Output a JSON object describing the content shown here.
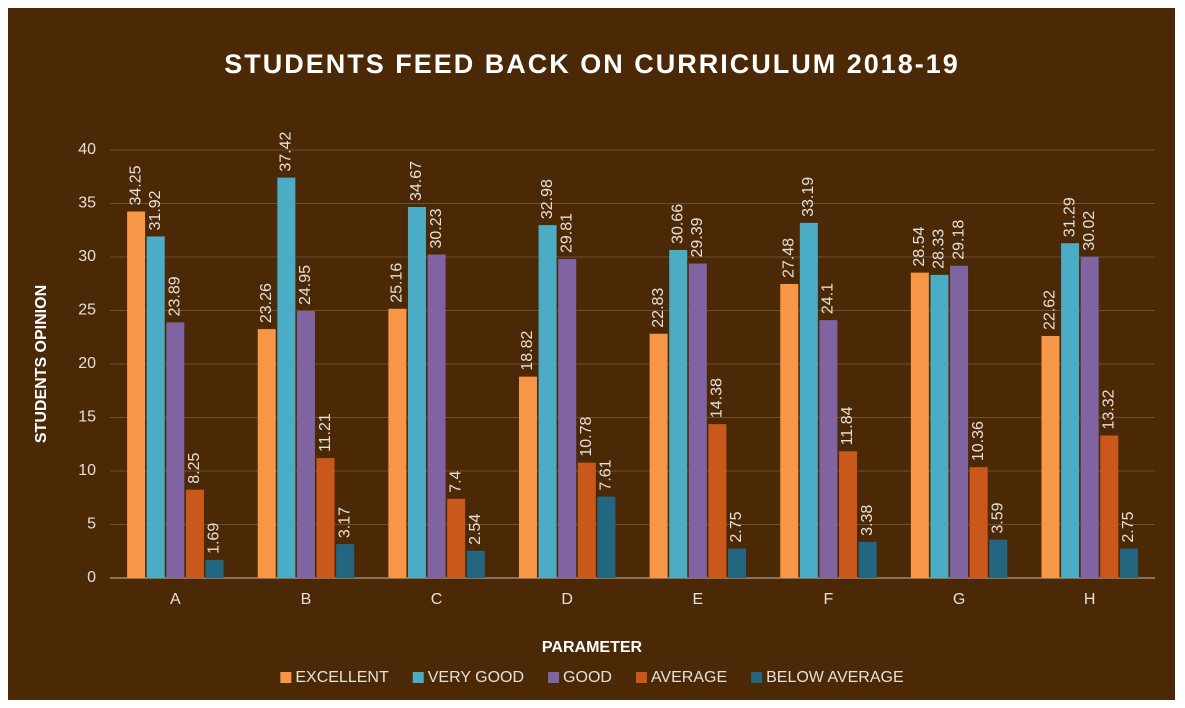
{
  "chart_data": {
    "type": "bar",
    "title": "STUDENTS FEED BACK ON CURRICULUM 2018-19",
    "x_label": "PARAMETER",
    "y_label": "STUDENTS OPINION",
    "categories": [
      "A",
      "B",
      "C",
      "D",
      "E",
      "F",
      "G",
      "H"
    ],
    "series": [
      {
        "name": "EXCELLENT",
        "color": "#f79646",
        "values": [
          34.25,
          23.26,
          25.16,
          18.82,
          22.83,
          27.48,
          28.54,
          22.62
        ]
      },
      {
        "name": "VERY GOOD",
        "color": "#4bacc6",
        "values": [
          31.92,
          37.42,
          34.67,
          32.98,
          30.66,
          33.19,
          28.33,
          31.29
        ]
      },
      {
        "name": "GOOD",
        "color": "#8064a2",
        "values": [
          23.89,
          24.95,
          30.23,
          29.81,
          29.39,
          24.1,
          29.18,
          30.02
        ]
      },
      {
        "name": "AVERAGE",
        "color": "#c9581a",
        "values": [
          8.25,
          11.21,
          7.4,
          10.78,
          14.38,
          11.84,
          10.36,
          13.32
        ]
      },
      {
        "name": "BELOW AVERAGE",
        "color": "#22677f",
        "values": [
          1.69,
          3.17,
          2.54,
          7.61,
          2.75,
          3.38,
          3.59,
          2.75
        ]
      }
    ],
    "ylim": [
      0,
      40
    ],
    "yticks": [
      0,
      5,
      10,
      15,
      20,
      25,
      30,
      35,
      40
    ],
    "grid": true,
    "legend": "bottom"
  }
}
